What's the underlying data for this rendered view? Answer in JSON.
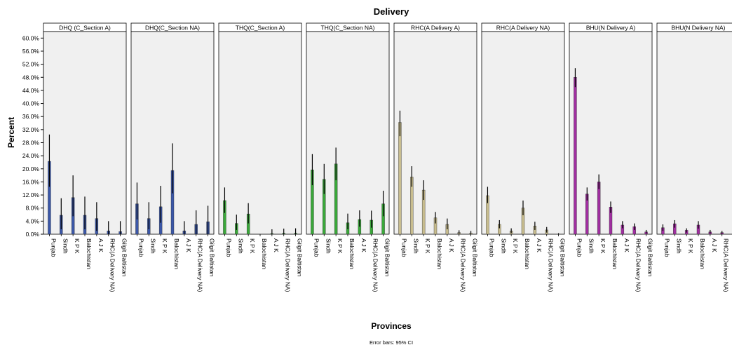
{
  "chart_data": {
    "type": "bar",
    "title": "Delivery",
    "xlabel": "Provinces",
    "ylabel": "Percent",
    "footnote": "Error bars: 95% CI",
    "ylim": [
      0,
      62
    ],
    "yticks": [
      "0.0%",
      "4.0%",
      "8.0%",
      "12.0%",
      "16.0%",
      "20.0%",
      "24.0%",
      "28.0%",
      "32.0%",
      "36.0%",
      "40.0%",
      "44.0%",
      "48.0%",
      "52.0%",
      "56.0%",
      "60.0%"
    ],
    "categories": [
      "Punjab",
      "Sindh",
      "K P K",
      "Balochistan",
      "A J K",
      "RHC(A Delivery NA)",
      "Gilgit Baltistan"
    ],
    "grid": false,
    "panels": [
      {
        "name": "DHQ (C_Section A)",
        "color": "#3b57a8",
        "values": [
          22.3,
          5.8,
          11.2,
          5.8,
          4.8,
          1.0,
          0.8
        ],
        "ci_low": [
          14.5,
          1.5,
          5.5,
          1.5,
          1.0,
          0.0,
          0.0
        ],
        "ci_high": [
          30.5,
          11.0,
          18.0,
          11.5,
          9.8,
          4.0,
          4.0
        ]
      },
      {
        "name": "DHQ(C_Section NA)",
        "color": "#3b57a8",
        "values": [
          9.3,
          4.8,
          8.4,
          19.5,
          1.0,
          3.0,
          3.8
        ],
        "ci_low": [
          4.5,
          1.5,
          3.5,
          12.5,
          0.0,
          0.0,
          0.0
        ],
        "ci_high": [
          15.8,
          9.8,
          14.8,
          27.8,
          4.0,
          7.3,
          8.7
        ]
      },
      {
        "name": "THQ(C_Section A)",
        "color": "#3aa83a",
        "values": [
          10.3,
          3.3,
          6.2,
          0.0,
          0.2,
          0.3,
          0.3
        ],
        "ci_low": [
          6.5,
          1.3,
          3.3,
          0.0,
          0.0,
          0.0,
          0.0
        ],
        "ci_high": [
          14.3,
          6.0,
          9.5,
          0.0,
          1.5,
          1.7,
          1.8
        ]
      },
      {
        "name": "THQ(C_Section NA)",
        "color": "#3aa83a",
        "values": [
          19.7,
          16.8,
          21.5,
          3.5,
          4.5,
          4.3,
          9.3
        ],
        "ci_low": [
          15.0,
          12.3,
          16.5,
          1.5,
          2.3,
          2.0,
          5.5
        ],
        "ci_high": [
          24.5,
          21.5,
          26.5,
          6.3,
          7.3,
          7.2,
          13.3
        ]
      },
      {
        "name": "RHC(A Delivery A)",
        "color": "#c8bd8f",
        "values": [
          34.2,
          17.5,
          13.5,
          5.0,
          3.0,
          0.5,
          0.3
        ],
        "ci_low": [
          30.0,
          14.5,
          10.5,
          3.3,
          1.5,
          0.0,
          0.0
        ],
        "ci_high": [
          37.8,
          20.8,
          16.5,
          6.8,
          4.8,
          1.2,
          1.0
        ]
      },
      {
        "name": "RHC(A Delivery NA)",
        "color": "#c8bd8f",
        "values": [
          11.8,
          3.0,
          1.0,
          8.0,
          2.5,
          1.3,
          0.0
        ],
        "ci_low": [
          9.5,
          1.8,
          0.3,
          5.8,
          1.3,
          0.5,
          0.0
        ],
        "ci_high": [
          14.5,
          4.3,
          1.8,
          10.3,
          3.8,
          2.2,
          0.3
        ]
      },
      {
        "name": "BHU(N Delivery A)",
        "color": "#a02ea0",
        "values": [
          48.0,
          12.3,
          16.0,
          8.3,
          2.8,
          2.3,
          0.7
        ],
        "ci_low": [
          45.0,
          10.3,
          13.8,
          6.5,
          1.8,
          1.3,
          0.2
        ],
        "ci_high": [
          50.8,
          14.3,
          18.3,
          10.0,
          4.0,
          3.3,
          1.3
        ]
      },
      {
        "name": "BHU(N Delivery NA)",
        "color": "#a02ea0",
        "values": [
          2.0,
          3.2,
          1.2,
          2.8,
          0.7,
          0.5,
          0.0
        ],
        "ci_low": [
          1.0,
          2.0,
          0.5,
          1.7,
          0.2,
          0.1,
          0.0
        ],
        "ci_high": [
          3.0,
          4.3,
          1.8,
          4.0,
          1.3,
          1.0,
          0.3
        ]
      }
    ]
  }
}
